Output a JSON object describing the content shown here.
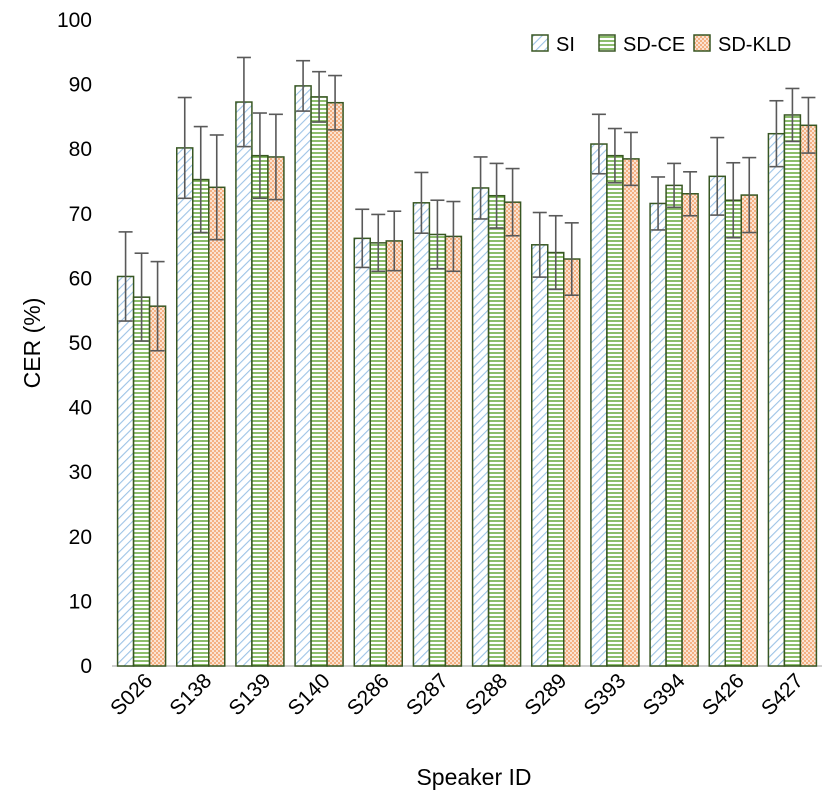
{
  "chart_data": {
    "type": "bar",
    "title": "",
    "xlabel": "Speaker ID",
    "ylabel": "CER (%)",
    "ylim": [
      0,
      100
    ],
    "yticks": [
      0,
      10,
      20,
      30,
      40,
      50,
      60,
      70,
      80,
      90,
      100
    ],
    "grid": false,
    "legend_position": "top-right",
    "categories": [
      "S026",
      "S138",
      "S139",
      "S140",
      "S286",
      "S287",
      "S288",
      "S289",
      "S393",
      "S394",
      "S426",
      "S427"
    ],
    "series": [
      {
        "name": "SI",
        "pattern": "diagonal-hatch",
        "color": "#9dc3e6",
        "values": [
          60.3,
          80.2,
          87.3,
          89.8,
          66.2,
          71.7,
          74.0,
          65.2,
          80.8,
          71.6,
          75.8,
          82.4
        ],
        "errors": [
          6.9,
          7.8,
          6.9,
          3.9,
          4.5,
          4.7,
          4.8,
          5.0,
          4.6,
          4.1,
          6.0,
          5.1
        ]
      },
      {
        "name": "SD-CE",
        "pattern": "horizontal-lines",
        "color": "#70ad47",
        "values": [
          57.1,
          75.3,
          79.0,
          88.1,
          65.5,
          66.8,
          72.8,
          64.0,
          79.0,
          74.4,
          72.1,
          85.3
        ],
        "errors": [
          6.8,
          8.2,
          6.6,
          3.9,
          4.4,
          5.3,
          5.0,
          5.7,
          4.2,
          3.4,
          5.8,
          4.1
        ]
      },
      {
        "name": "SD-KLD",
        "pattern": "dotted",
        "color": "#f4b183",
        "values": [
          55.7,
          74.1,
          78.8,
          87.2,
          65.8,
          66.5,
          71.8,
          63.0,
          78.5,
          73.1,
          72.9,
          83.7
        ],
        "errors": [
          6.9,
          8.1,
          6.6,
          4.2,
          4.6,
          5.4,
          5.2,
          5.6,
          4.1,
          3.4,
          5.8,
          4.3
        ]
      }
    ]
  }
}
